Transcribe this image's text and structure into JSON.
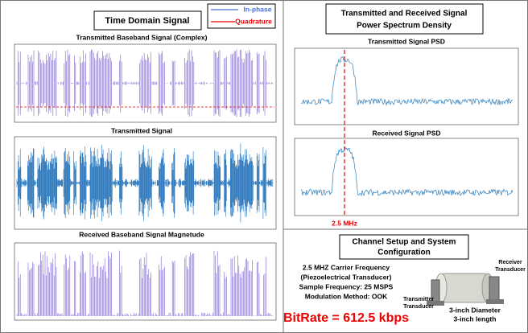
{
  "left": {
    "title": "Time Domain Signal",
    "legend": [
      "In-phase",
      "Quadrature"
    ],
    "panels": [
      "Transmitted Baseband Signal (Complex)",
      "Transmitted Signal",
      "Received Baseband Signal Magnetude"
    ]
  },
  "right": {
    "title": [
      "Transmitted and Received Signal",
      "Power Spectrum Density"
    ],
    "panels": [
      "Transmitted Signal PSD",
      "Received Signal PSD"
    ],
    "marker": "2.5 MHz"
  },
  "setup": {
    "title": [
      "Channel Setup and System",
      "Configuration"
    ],
    "lines": [
      "2.5 MHZ Carrier Frequency",
      "(Piezoelectrical Transducer)",
      "Sample Frequency: 25 MSPS",
      "Modulation Method: OOK"
    ],
    "bitrate": "BitRate = 612.5 kbps",
    "receiver": [
      "Receiver",
      "Transducer"
    ],
    "transmitter": [
      "Transmitter",
      "Transducer"
    ],
    "size": [
      "3-inch Diameter",
      "3-inch length"
    ]
  }
}
